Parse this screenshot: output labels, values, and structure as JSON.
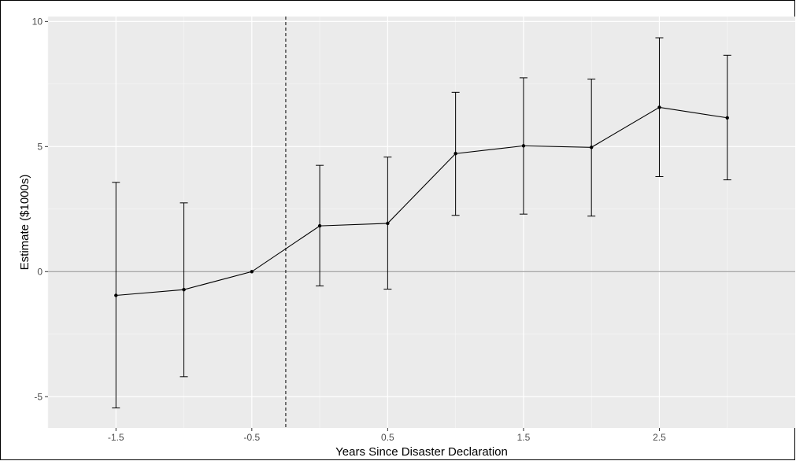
{
  "chart_data": {
    "type": "line",
    "title": "",
    "xlabel": "Years Since Disaster Declaration",
    "ylabel": "Estimate ($1000s)",
    "xlim": [
      -2.0,
      3.5
    ],
    "ylim": [
      -6.25,
      10.2
    ],
    "x_ticks": [
      -1.5,
      -0.5,
      0.5,
      1.5,
      2.5
    ],
    "x_tick_labels": [
      "-1.5",
      "-0.5",
      "0.5",
      "1.5",
      "2.5"
    ],
    "y_ticks": [
      -5,
      0,
      5,
      10
    ],
    "y_tick_labels": [
      "-5",
      "0",
      "5",
      "10"
    ],
    "reference_hline": 0,
    "reference_vline": -0.25,
    "grid": true,
    "series": [
      {
        "x": [
          -1.5,
          -1.0,
          -0.5,
          0.0,
          0.5,
          1.0,
          1.5,
          2.0,
          2.5,
          3.0
        ],
        "y": [
          -0.95,
          -0.72,
          0.0,
          1.83,
          1.93,
          4.72,
          5.03,
          4.97,
          6.57,
          6.15
        ],
        "lower": [
          -5.45,
          -4.2,
          0.0,
          -0.57,
          -0.7,
          2.25,
          2.3,
          2.22,
          3.8,
          3.67
        ],
        "upper": [
          3.57,
          2.75,
          0.0,
          4.25,
          4.58,
          7.17,
          7.75,
          7.7,
          9.35,
          8.65
        ]
      }
    ]
  }
}
